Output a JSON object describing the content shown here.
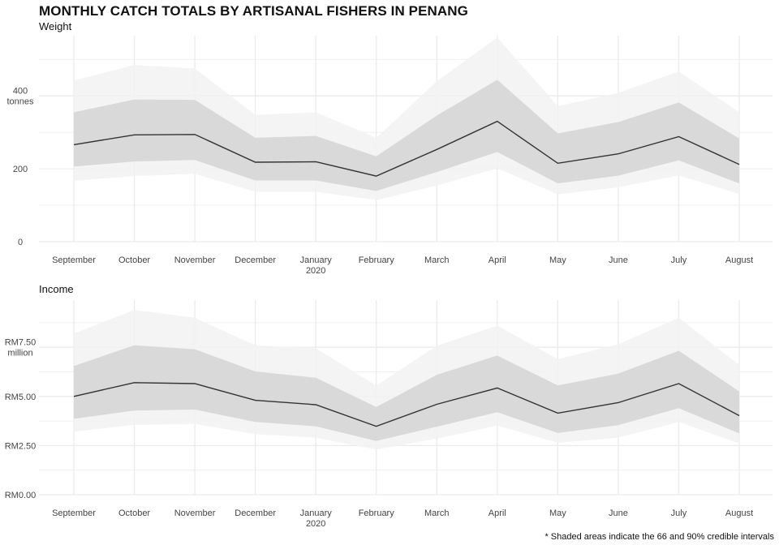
{
  "title": "MONTHLY CATCH TOTALS BY ARTISANAL FISHERS IN PENANG",
  "caption": "* Shaded areas indicate the 66 and 90% credible intervals",
  "colors": {
    "line": "#333333",
    "band66": "#d9d9d9",
    "band90": "#f2f2f2",
    "grid": "#ebebeb"
  },
  "chart_data": [
    {
      "type": "area",
      "subtitle": "Weight",
      "categories": [
        "September",
        "October",
        "November",
        "December",
        "January",
        "February",
        "March",
        "April",
        "May",
        "June",
        "July",
        "August"
      ],
      "x_sublabels": [
        "",
        "",
        "",
        "",
        "2020",
        "",
        "",
        "",
        "",
        "",
        "",
        ""
      ],
      "y_ticks": [
        0,
        200,
        400
      ],
      "y_tick_labels": [
        "0",
        "200",
        "400\ntonnes"
      ],
      "ylim": [
        0,
        565
      ],
      "grid": true,
      "series": [
        {
          "values": [
            266,
            293,
            294,
            218,
            219,
            180,
            253,
            330,
            215,
            241,
            288,
            212
          ]
        }
      ],
      "interval_66": {
        "lower": [
          206,
          220,
          224,
          168,
          168,
          139,
          191,
          246,
          160,
          181,
          223,
          160
        ],
        "upper": [
          355,
          390,
          389,
          285,
          290,
          234,
          346,
          444,
          297,
          328,
          382,
          283
        ]
      },
      "interval_90": {
        "lower": [
          167,
          180,
          186,
          137,
          137,
          114,
          154,
          201,
          130,
          149,
          182,
          131
        ],
        "upper": [
          442,
          485,
          475,
          348,
          355,
          285,
          440,
          560,
          372,
          408,
          467,
          355
        ]
      }
    },
    {
      "type": "area",
      "subtitle": "Income",
      "categories": [
        "September",
        "October",
        "November",
        "December",
        "January",
        "February",
        "March",
        "April",
        "May",
        "June",
        "July",
        "August"
      ],
      "x_sublabels": [
        "",
        "",
        "",
        "",
        "2020",
        "",
        "",
        "",
        "",
        "",
        "",
        ""
      ],
      "y_ticks": [
        0,
        2.5,
        5,
        7.5
      ],
      "y_tick_labels": [
        "RM0.00",
        "RM2.50",
        "RM5.00",
        "RM7.50\nmillion"
      ],
      "ylim": [
        0,
        9.9
      ],
      "grid": true,
      "series": [
        {
          "values": [
            5.0,
            5.7,
            5.65,
            4.8,
            4.58,
            3.48,
            4.6,
            5.43,
            4.15,
            4.68,
            5.65,
            4.02
          ]
        }
      ],
      "interval_66": {
        "lower": [
          3.86,
          4.28,
          4.33,
          3.7,
          3.48,
          2.73,
          3.46,
          4.2,
          3.14,
          3.54,
          4.4,
          3.12
        ],
        "upper": [
          6.55,
          7.6,
          7.4,
          6.27,
          5.95,
          4.46,
          6.1,
          7.08,
          5.56,
          6.16,
          7.32,
          5.25
        ]
      },
      "interval_90": {
        "lower": [
          3.2,
          3.55,
          3.6,
          3.08,
          2.9,
          2.3,
          2.85,
          3.52,
          2.64,
          2.9,
          3.7,
          2.6
        ],
        "upper": [
          8.2,
          9.4,
          9.0,
          7.6,
          7.45,
          5.55,
          7.58,
          8.6,
          6.9,
          7.65,
          9.0,
          6.6
        ]
      }
    }
  ]
}
